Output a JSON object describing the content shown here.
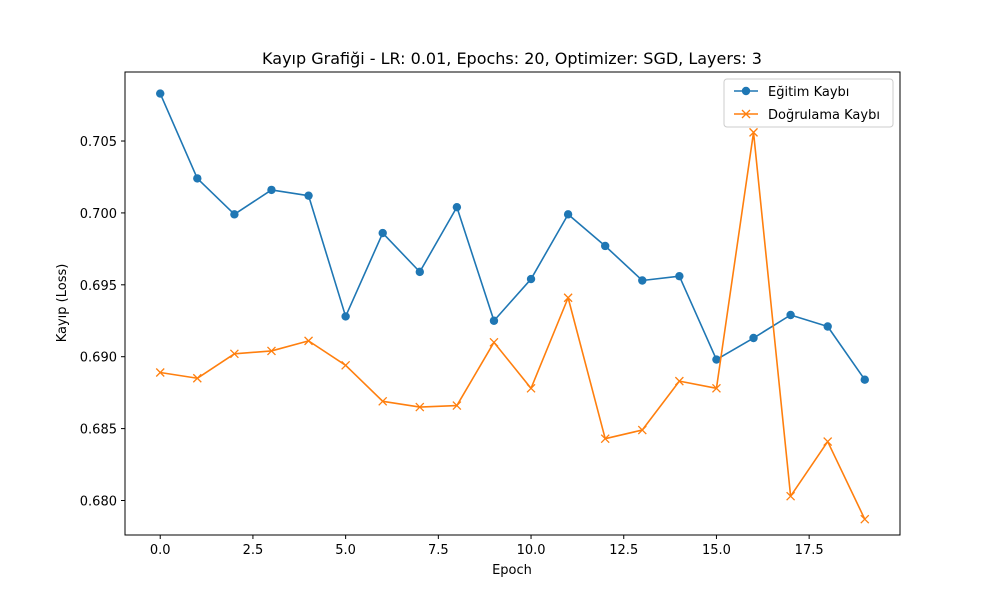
{
  "chart_data": {
    "type": "line",
    "title": "Kayıp Grafiği - LR: 0.01, Epochs: 20, Optimizer: SGD, Layers: 3",
    "xlabel": "Epoch",
    "ylabel": "Kayıp (Loss)",
    "xlim": [
      -0.95,
      19.95
    ],
    "ylim": [
      0.6776,
      0.7098
    ],
    "xticks": [
      0.0,
      2.5,
      5.0,
      7.5,
      10.0,
      12.5,
      15.0,
      17.5
    ],
    "xtick_labels": [
      "0.0",
      "2.5",
      "5.0",
      "7.5",
      "10.0",
      "12.5",
      "15.0",
      "17.5"
    ],
    "yticks": [
      0.68,
      0.685,
      0.69,
      0.695,
      0.7,
      0.705
    ],
    "ytick_labels": [
      "0.680",
      "0.685",
      "0.690",
      "0.695",
      "0.700",
      "0.705"
    ],
    "grid": false,
    "legend_position": "top-right",
    "x": [
      0,
      1,
      2,
      3,
      4,
      5,
      6,
      7,
      8,
      9,
      10,
      11,
      12,
      13,
      14,
      15,
      16,
      17,
      18,
      19
    ],
    "series": [
      {
        "name": "Eğitim Kaybı",
        "color": "#1f77b4",
        "marker": "circle",
        "values": [
          0.7083,
          0.7024,
          0.6999,
          0.7016,
          0.7012,
          0.6928,
          0.6986,
          0.6959,
          0.7004,
          0.6925,
          0.6954,
          0.6999,
          0.6977,
          0.6953,
          0.6956,
          0.6898,
          0.6913,
          0.6929,
          0.6921,
          0.6884
        ]
      },
      {
        "name": "Doğrulama Kaybı",
        "color": "#ff7f0e",
        "marker": "x",
        "values": [
          0.6889,
          0.6885,
          0.6902,
          0.6904,
          0.6911,
          0.6894,
          0.6869,
          0.6865,
          0.6866,
          0.691,
          0.6878,
          0.6941,
          0.6843,
          0.6849,
          0.6883,
          0.6878,
          0.7056,
          0.6803,
          0.6841,
          0.6787
        ]
      }
    ]
  }
}
